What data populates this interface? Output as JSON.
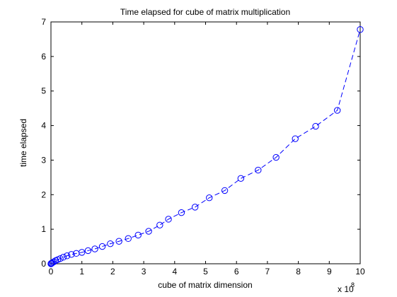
{
  "chart_data": {
    "type": "line",
    "title": "Time elapsed for cube of matrix multiplication",
    "xlabel": "cube of matrix dimension",
    "ylabel": "time elapsed",
    "x_multiplier_base": "x 10",
    "x_multiplier_exp": "8",
    "xlim": [
      0,
      10
    ],
    "ylim": [
      0,
      7
    ],
    "xticks": [
      "0",
      "1",
      "2",
      "3",
      "4",
      "5",
      "6",
      "7",
      "8",
      "9",
      "10"
    ],
    "yticks": [
      "0",
      "1",
      "2",
      "3",
      "4",
      "5",
      "6",
      "7"
    ],
    "grid": false,
    "line_color": "#0000ff",
    "line_style": "dashed",
    "marker": "circle",
    "x": [
      0.0,
      0.01,
      0.03,
      0.06,
      0.1,
      0.15,
      0.22,
      0.3,
      0.4,
      0.52,
      0.66,
      0.82,
      1.0,
      1.2,
      1.42,
      1.66,
      1.92,
      2.2,
      2.5,
      2.82,
      3.16,
      3.52,
      3.8,
      4.22,
      4.66,
      5.12,
      5.62,
      6.14,
      6.7,
      7.28,
      7.9,
      8.56,
      9.26,
      10.0
    ],
    "y": [
      0.0,
      0.01,
      0.02,
      0.04,
      0.06,
      0.09,
      0.12,
      0.15,
      0.19,
      0.23,
      0.27,
      0.3,
      0.33,
      0.38,
      0.43,
      0.5,
      0.58,
      0.65,
      0.73,
      0.83,
      0.94,
      1.12,
      1.29,
      1.48,
      1.64,
      1.91,
      2.12,
      2.47,
      2.71,
      3.08,
      3.62,
      3.98,
      4.44,
      6.78
    ]
  }
}
